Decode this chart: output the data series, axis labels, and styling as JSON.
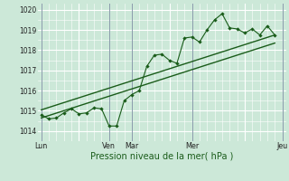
{
  "xlabel": "Pression niveau de la mer( hPa )",
  "bg_color": "#cce8d8",
  "plot_bg_color": "#cce8d8",
  "grid_color": "#aaccbb",
  "line_color": "#1a5c1a",
  "vline_color": "#8899aa",
  "ylim": [
    1013.5,
    1020.3
  ],
  "yticks": [
    1014,
    1015,
    1016,
    1017,
    1018,
    1019,
    1020
  ],
  "xtick_labels": [
    "Lun",
    "",
    "Ven",
    "Mar",
    "",
    "Mer",
    "",
    "Jeu"
  ],
  "xtick_positions": [
    0,
    5,
    9,
    12,
    17,
    20,
    27,
    32
  ],
  "vlines": [
    0,
    9,
    12,
    20,
    32
  ],
  "series1": [
    [
      0,
      1014.8
    ],
    [
      1,
      1014.6
    ],
    [
      2,
      1014.65
    ],
    [
      3,
      1014.9
    ],
    [
      4,
      1015.1
    ],
    [
      5,
      1014.85
    ],
    [
      6,
      1014.9
    ],
    [
      7,
      1015.15
    ],
    [
      8,
      1015.1
    ],
    [
      9,
      1014.25
    ],
    [
      10,
      1014.25
    ],
    [
      11,
      1015.5
    ],
    [
      12,
      1015.8
    ],
    [
      13,
      1016.0
    ],
    [
      14,
      1017.2
    ],
    [
      15,
      1017.75
    ],
    [
      16,
      1017.8
    ],
    [
      17,
      1017.5
    ],
    [
      18,
      1017.35
    ],
    [
      19,
      1018.6
    ],
    [
      20,
      1018.65
    ],
    [
      21,
      1018.4
    ],
    [
      22,
      1019.0
    ],
    [
      23,
      1019.5
    ],
    [
      24,
      1019.8
    ],
    [
      25,
      1019.1
    ],
    [
      26,
      1019.05
    ],
    [
      27,
      1018.85
    ],
    [
      28,
      1019.05
    ],
    [
      29,
      1018.75
    ],
    [
      30,
      1019.2
    ],
    [
      31,
      1018.75
    ]
  ],
  "series2": [
    [
      0,
      1015.05
    ],
    [
      31,
      1018.75
    ]
  ],
  "series3": [
    [
      0,
      1014.65
    ],
    [
      31,
      1018.35
    ]
  ]
}
